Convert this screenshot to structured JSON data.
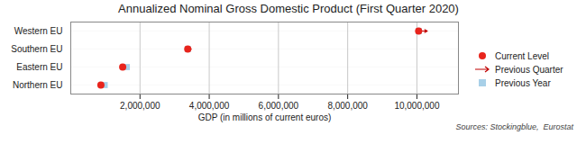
{
  "chart_data": {
    "type": "dot",
    "orientation": "horizontal",
    "title": "Annualized Nominal Gross Domestic Product (First Quarter 2020)",
    "xlabel": "GDP (in millions of current euros)",
    "annotations": [
      "Sources: Stockingblue,  Eurostat"
    ],
    "categories": [
      "Western EU",
      "Southern EU",
      "Eastern EU",
      "Northern EU"
    ],
    "series": [
      {
        "name": "Current Level",
        "color": "#e8241c",
        "marker": "circle",
        "values": [
          10050000,
          3380000,
          1500000,
          870000
        ]
      },
      {
        "name": "Previous Quarter",
        "color": "#c00000",
        "marker": "arrow",
        "values": [
          10300000,
          3480000,
          1500000,
          870000
        ]
      },
      {
        "name": "Previous Year",
        "color": "#a8d0e8",
        "marker": "square",
        "values": [
          10050000,
          3380000,
          1620000,
          980000
        ]
      }
    ],
    "xlim": [
      0,
      11200000
    ],
    "xticks": [
      {
        "value": 2000000,
        "label": "2,000,000"
      },
      {
        "value": 4000000,
        "label": "4,000,000"
      },
      {
        "value": 6000000,
        "label": "6,000,000"
      },
      {
        "value": 8000000,
        "label": "8,000,000"
      },
      {
        "value": 10000000,
        "label": "10,000,000"
      }
    ],
    "grid": true,
    "legend": "right"
  }
}
